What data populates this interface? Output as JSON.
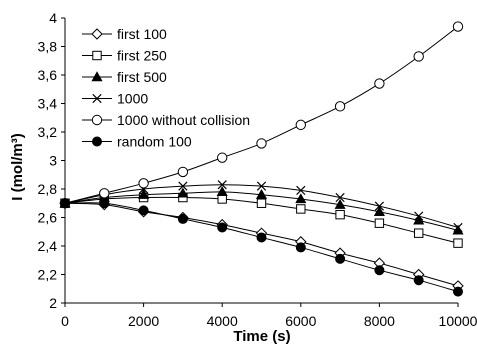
{
  "chart_data": {
    "type": "line",
    "title": "",
    "xlabel": "Time (s)",
    "ylabel": "I  (mol/m³)",
    "xlim": [
      0,
      10000
    ],
    "ylim": [
      2,
      4
    ],
    "x_ticks": [
      0,
      2000,
      4000,
      6000,
      8000,
      10000
    ],
    "x_tick_labels": [
      "0",
      "2000",
      "4000",
      "6000",
      "8000",
      "10000"
    ],
    "y_ticks": [
      2,
      2.2,
      2.4,
      2.6,
      2.8,
      3,
      3.2,
      3.4,
      3.6,
      3.8,
      4
    ],
    "y_tick_labels": [
      "2",
      "2,2",
      "2,4",
      "2,6",
      "2,8",
      "3",
      "3,2",
      "3,4",
      "3,6",
      "3,8",
      "4"
    ],
    "grid": false,
    "legend_position": "top-left",
    "x": [
      0,
      1000,
      2000,
      3000,
      4000,
      5000,
      6000,
      7000,
      8000,
      9000,
      10000
    ],
    "series": [
      {
        "name": "first 100",
        "marker": "diamond-open",
        "values": [
          2.7,
          2.69,
          2.64,
          2.6,
          2.55,
          2.49,
          2.43,
          2.35,
          2.28,
          2.2,
          2.12
        ]
      },
      {
        "name": "first 250",
        "marker": "square-open",
        "values": [
          2.7,
          2.73,
          2.74,
          2.74,
          2.73,
          2.7,
          2.66,
          2.62,
          2.56,
          2.49,
          2.42
        ]
      },
      {
        "name": "first 500",
        "marker": "triangle-filled",
        "values": [
          2.7,
          2.74,
          2.76,
          2.77,
          2.78,
          2.76,
          2.73,
          2.69,
          2.64,
          2.58,
          2.51
        ]
      },
      {
        "name": "1000",
        "marker": "x-cross",
        "values": [
          2.7,
          2.76,
          2.8,
          2.82,
          2.83,
          2.82,
          2.79,
          2.74,
          2.68,
          2.61,
          2.53
        ]
      },
      {
        "name": "1000 without collision",
        "marker": "circle-open",
        "values": [
          2.7,
          2.77,
          2.84,
          2.92,
          3.02,
          3.12,
          3.25,
          3.38,
          3.54,
          3.73,
          3.94
        ]
      },
      {
        "name": "random 100",
        "marker": "circle-filled",
        "values": [
          2.7,
          2.7,
          2.65,
          2.59,
          2.53,
          2.46,
          2.39,
          2.31,
          2.23,
          2.16,
          2.08
        ]
      }
    ]
  }
}
